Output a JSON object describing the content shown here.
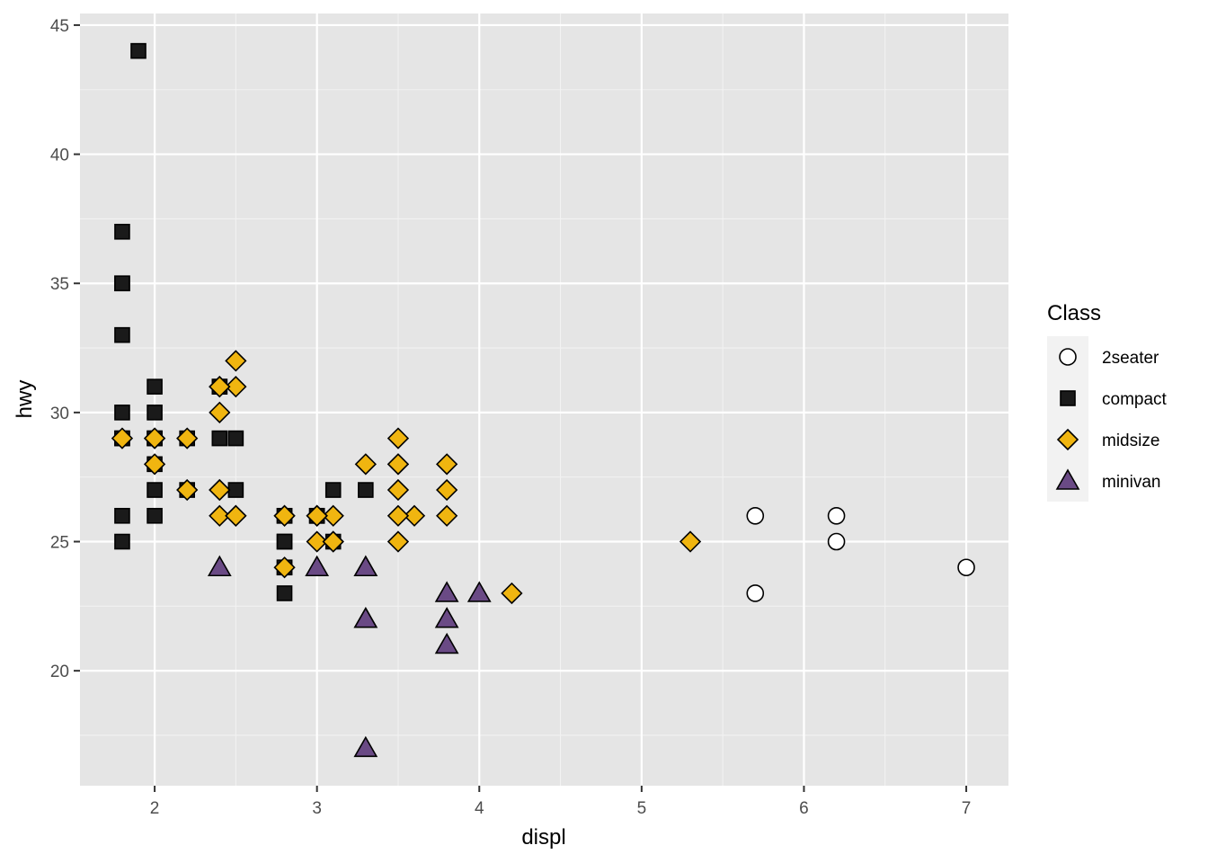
{
  "chart_data": {
    "type": "scatter",
    "xlabel": "displ",
    "ylabel": "hwy",
    "xlim": [
      1.54,
      7.26
    ],
    "ylim": [
      15.55,
      45.45
    ],
    "x_ticks": [
      2,
      3,
      4,
      5,
      6,
      7
    ],
    "y_ticks": [
      20,
      25,
      30,
      35,
      40,
      45
    ],
    "grid": true,
    "legend": {
      "title": "Class",
      "position": "right"
    },
    "series": [
      {
        "name": "2seater",
        "shape": "circle",
        "fill": "#ffffff",
        "stroke": "#000000",
        "points": [
          [
            5.7,
            26
          ],
          [
            5.7,
            23
          ],
          [
            6.2,
            26
          ],
          [
            6.2,
            25
          ],
          [
            7.0,
            24
          ]
        ]
      },
      {
        "name": "compact",
        "shape": "square",
        "fill": "#1a1a1a",
        "stroke": "#000000",
        "points": [
          [
            1.8,
            29
          ],
          [
            1.8,
            29
          ],
          [
            2.0,
            31
          ],
          [
            2.0,
            30
          ],
          [
            2.8,
            26
          ],
          [
            2.8,
            26
          ],
          [
            3.1,
            27
          ],
          [
            1.8,
            26
          ],
          [
            1.8,
            25
          ],
          [
            2.0,
            28
          ],
          [
            2.0,
            27
          ],
          [
            2.8,
            25
          ],
          [
            2.8,
            25
          ],
          [
            3.1,
            25
          ],
          [
            2.2,
            27
          ],
          [
            2.2,
            29
          ],
          [
            2.4,
            31
          ],
          [
            2.4,
            31
          ],
          [
            3.0,
            26
          ],
          [
            3.0,
            26
          ],
          [
            3.3,
            27
          ],
          [
            1.9,
            44
          ],
          [
            2.0,
            29
          ],
          [
            2.0,
            26
          ],
          [
            2.0,
            29
          ],
          [
            2.5,
            29
          ],
          [
            2.5,
            27
          ],
          [
            2.8,
            24
          ],
          [
            2.8,
            24
          ],
          [
            3.0,
            26
          ],
          [
            1.8,
            30
          ],
          [
            1.8,
            33
          ],
          [
            1.8,
            35
          ],
          [
            1.8,
            37
          ],
          [
            1.8,
            35
          ],
          [
            2.4,
            29
          ],
          [
            2.8,
            23
          ]
        ]
      },
      {
        "name": "midsize",
        "shape": "diamond",
        "fill": "#f0b510",
        "stroke": "#000000",
        "points": [
          [
            2.4,
            27
          ],
          [
            2.4,
            30
          ],
          [
            3.1,
            26
          ],
          [
            3.5,
            29
          ],
          [
            3.6,
            26
          ],
          [
            2.4,
            26
          ],
          [
            3.0,
            25
          ],
          [
            3.3,
            28
          ],
          [
            3.8,
            26
          ],
          [
            4.2,
            23
          ],
          [
            5.3,
            25
          ],
          [
            2.5,
            26
          ],
          [
            2.5,
            26
          ],
          [
            2.5,
            32
          ],
          [
            2.5,
            31
          ],
          [
            3.5,
            27
          ],
          [
            3.5,
            26
          ],
          [
            3.5,
            28
          ],
          [
            2.2,
            27
          ],
          [
            2.2,
            29
          ],
          [
            2.4,
            31
          ],
          [
            2.4,
            31
          ],
          [
            3.0,
            26
          ],
          [
            3.0,
            26
          ],
          [
            3.5,
            28
          ],
          [
            3.8,
            27
          ],
          [
            3.8,
            28
          ],
          [
            1.8,
            29
          ],
          [
            2.0,
            29
          ],
          [
            2.8,
            26
          ],
          [
            3.1,
            25
          ],
          [
            3.5,
            25
          ],
          [
            2.0,
            28
          ],
          [
            2.0,
            29
          ],
          [
            2.8,
            24
          ],
          [
            2.8,
            26
          ],
          [
            3.1,
            25
          ],
          [
            2.4,
            27
          ],
          [
            3.0,
            26
          ]
        ]
      },
      {
        "name": "minivan",
        "shape": "triangle",
        "fill": "#6a4a85",
        "stroke": "#000000",
        "points": [
          [
            2.4,
            24
          ],
          [
            3.0,
            24
          ],
          [
            3.3,
            22
          ],
          [
            3.3,
            22
          ],
          [
            3.3,
            24
          ],
          [
            3.3,
            24
          ],
          [
            3.3,
            17
          ],
          [
            3.8,
            22
          ],
          [
            3.8,
            21
          ],
          [
            3.8,
            23
          ],
          [
            4.0,
            23
          ]
        ]
      }
    ]
  }
}
